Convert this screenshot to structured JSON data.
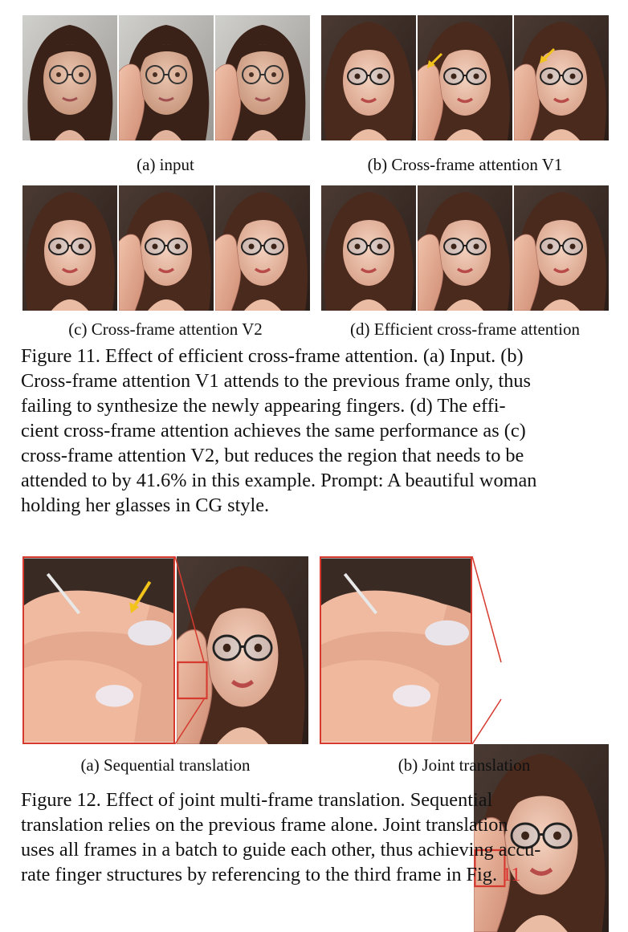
{
  "figure11": {
    "subcaptions": {
      "a": "(a) input",
      "b": "(b) Cross-frame attention V1",
      "c": "(c) Cross-frame attention V2",
      "d": "(d) Efficient cross-frame attention"
    },
    "caption_lines": [
      "Figure 11. Effect of efficient cross-frame attention. (a) Input. (b)",
      "Cross-frame attention V1 attends to the previous frame only, thus",
      "failing to synthesize the newly appearing fingers. (d) The effi-",
      "cient cross-frame attention achieves the same performance as (c)",
      "cross-frame attention V2, but reduces the region that needs to be",
      "attended to by 41.6% in this example. Prompt: A beautiful woman",
      "holding her glasses in CG style."
    ]
  },
  "figure12": {
    "subcaptions": {
      "a": "(a) Sequential translation",
      "b": "(b) Joint translation"
    },
    "caption_lines": [
      "Figure 12. Effect of joint multi-frame translation. Sequential",
      "translation relies on the previous frame alone. Joint translation",
      "uses all frames in a batch to guide each other, thus achieving accu-"
    ],
    "caption_last_line": "rate finger structures by referencing to the third frame in Fig.",
    "caption_ref": "11"
  },
  "colors": {
    "zoom_border": "#d63a2f",
    "arrow": "#f2c31b",
    "ref_link": "#d33333"
  }
}
